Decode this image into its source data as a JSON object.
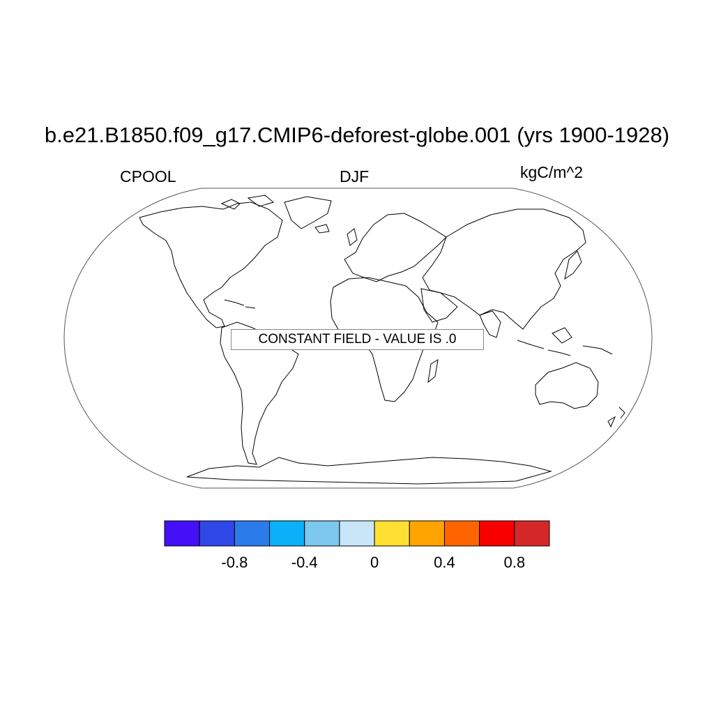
{
  "title": "b.e21.B1850.f09_g17.CMIP6-deforest-globe.001 (yrs 1900-1928)",
  "left_label": "CPOOL",
  "center_label": "DJF",
  "right_label": "kgC/m^2",
  "notice": "CONSTANT FIELD - VALUE IS .0",
  "map": {
    "projection": "Robinson",
    "coastlines": true,
    "coastline_color": "#000000"
  },
  "colorbar": {
    "colors": [
      "#4410F8",
      "#2E48E8",
      "#2C7BEA",
      "#0AB0F8",
      "#7CC8EE",
      "#C8E6F8",
      "#FFE032",
      "#FFA400",
      "#FF6400",
      "#F80000",
      "#D42828"
    ],
    "tick_labels": [
      "-0.8",
      "-0.4",
      "0",
      "0.4",
      "0.8"
    ]
  }
}
